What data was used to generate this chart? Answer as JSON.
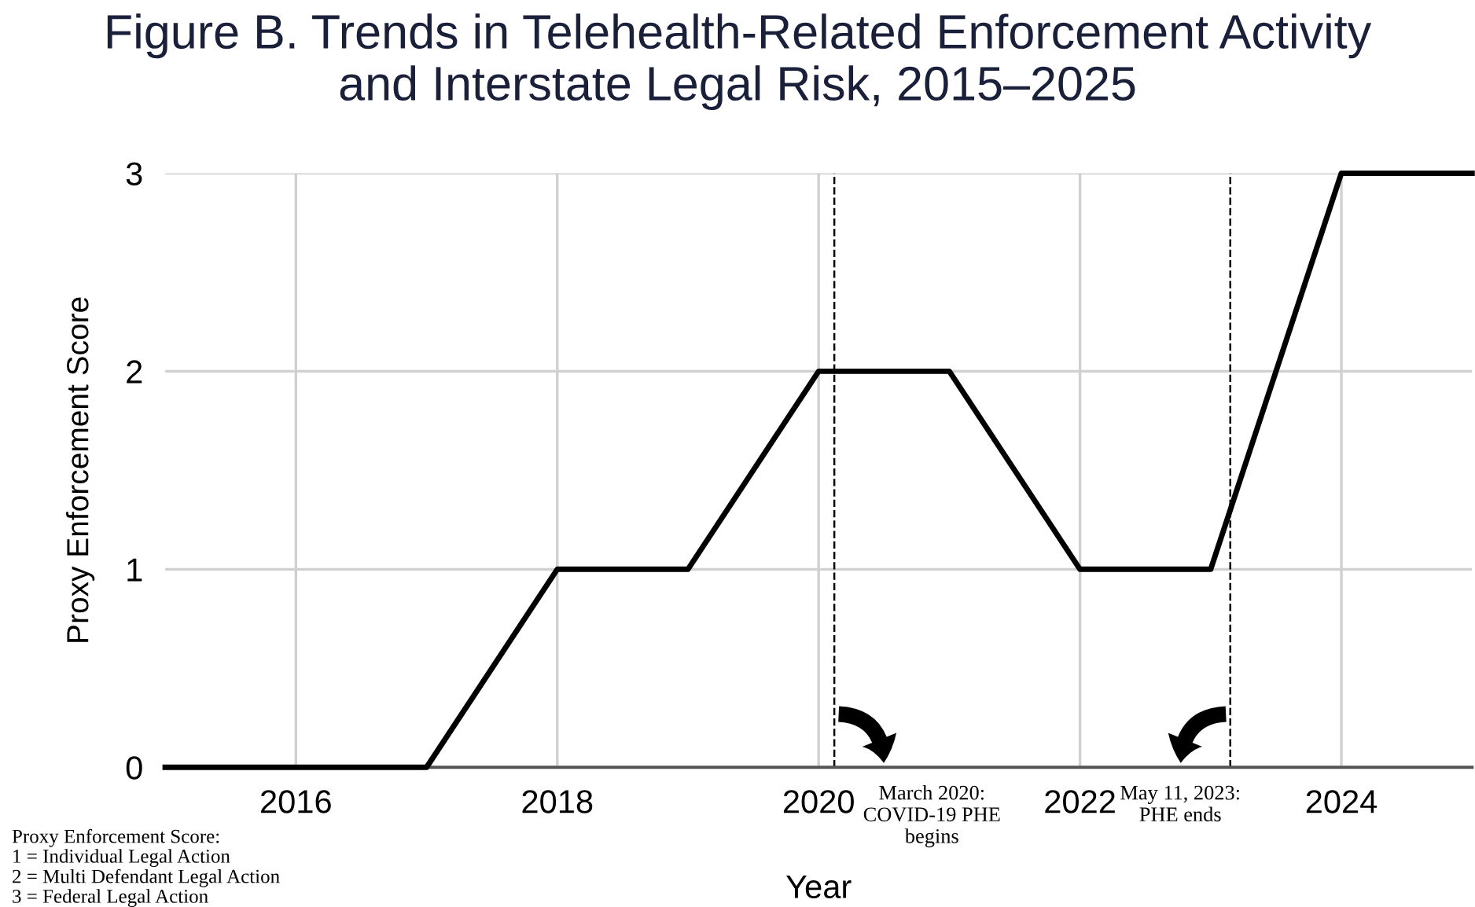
{
  "chart_data": {
    "type": "line",
    "title": "Figure B. Trends in Telehealth-Related Enforcement Activity\nand Interstate Legal Risk, 2015–2025",
    "xlabel": "Year",
    "ylabel": "Proxy Enforcement Score",
    "x": [
      2015,
      2016,
      2017,
      2018,
      2019,
      2020,
      2021,
      2022,
      2023,
      2024,
      2025
    ],
    "series": [
      {
        "color": "#000000",
        "values": [
          0,
          0,
          0,
          1,
          1,
          2,
          2,
          1,
          1,
          3,
          3
        ]
      }
    ],
    "xlim": [
      2015,
      2025
    ],
    "xticks": [
      2016,
      2018,
      2020,
      2022,
      2024
    ],
    "ylim": [
      0,
      3
    ],
    "yticks": [
      0,
      1,
      2,
      3
    ],
    "grid": true,
    "legend": false,
    "marker": "none",
    "line_style": "solid",
    "ref_lines": [
      {
        "axis": "x",
        "value": 2020.12,
        "label": "March 2020:\nCOVID-19 PHE\nbegins",
        "line_style": "dashed",
        "color": "#000000"
      },
      {
        "axis": "x",
        "value": 2023.15,
        "label": "May 11, 2023:\nPHE ends",
        "line_style": "dashed",
        "color": "#000000"
      }
    ],
    "annotations": [
      "Proxy Enforcement Score:\n1 = Individual Legal Action\n2 = Multi Defendant Legal Action\n3 = Federal Legal Action"
    ]
  }
}
